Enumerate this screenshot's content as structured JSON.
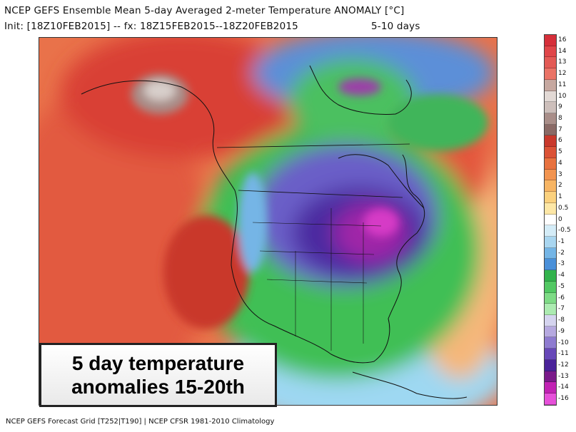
{
  "header": {
    "title": "NCEP GEFS Ensemble Mean 5-day Averaged 2-meter Temperature ANOMALY [°C]",
    "init": "Init: [18Z10FEB2015] -- fx: 18Z15FEB2015--18Z20FEB2015",
    "range": "5-10 days"
  },
  "overlay": {
    "line1": "5 day temperature",
    "line2": "anomalies 15-20th"
  },
  "footer": "NCEP GEFS Forecast Grid [T252|T190] | NCEP CFSR 1981-2010 Climatology",
  "colorbar": {
    "labels": [
      "16",
      "14",
      "13",
      "12",
      "11",
      "10",
      "9",
      "8",
      "7",
      "6",
      "5",
      "4",
      "3",
      "2",
      "1",
      "0.5",
      "0",
      "-0.5",
      "-1",
      "-2",
      "-3",
      "-4",
      "-5",
      "-6",
      "-7",
      "-8",
      "-9",
      "-10",
      "-11",
      "-12",
      "-13",
      "-14",
      "-16"
    ],
    "colors": [
      "#d62f3a",
      "#e04649",
      "#e35a55",
      "#ea7366",
      "#c6a8a0",
      "#e2d9d5",
      "#cdbfbb",
      "#a98e89",
      "#8a6a66",
      "#c9392c",
      "#db5236",
      "#e8723f",
      "#f29450",
      "#f7b564",
      "#fbd17e",
      "#fde7a6",
      "#ffffff",
      "#d4ecf7",
      "#a9d6f0",
      "#74b5e6",
      "#4a90d9",
      "#33b34d",
      "#52c863",
      "#7edb86",
      "#acebb1",
      "#d5d4ef",
      "#b6a9e0",
      "#8e7bd0",
      "#6748b8",
      "#4a239a",
      "#7a1a8a",
      "#c122b3",
      "#e650d9"
    ]
  },
  "icons": [
    "colorbar-icon"
  ]
}
